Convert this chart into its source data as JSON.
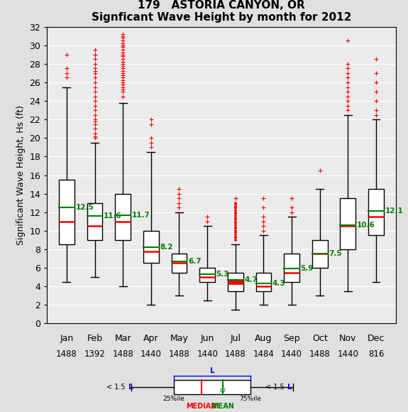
{
  "title_line1": "179   ASTORIA CANYON, OR",
  "title_line2": "Signficant Wave Height by month for 2012",
  "ylabel": "Significant Wave Height, Hs (ft)",
  "months": [
    "Jan",
    "Feb",
    "Mar",
    "Apr",
    "May",
    "Jun",
    "Jul",
    "Aug",
    "Sep",
    "Oct",
    "Nov",
    "Dec"
  ],
  "counts": [
    "1488",
    "1392",
    "1488",
    "1440",
    "1488",
    "1440",
    "1488",
    "1484",
    "1440",
    "1488",
    "1440",
    "816"
  ],
  "ylim": [
    0,
    32
  ],
  "yticks": [
    0,
    2,
    4,
    6,
    8,
    10,
    12,
    14,
    16,
    18,
    20,
    22,
    24,
    26,
    28,
    30,
    32
  ],
  "box_data": {
    "Jan": {
      "q1": 8.5,
      "median": 11.0,
      "q3": 15.5,
      "whislo": 4.5,
      "whishi": 25.5,
      "mean": 12.5,
      "fliers": [
        26.5,
        27.0,
        27.5,
        29.0
      ]
    },
    "Feb": {
      "q1": 9.0,
      "median": 10.5,
      "q3": 13.0,
      "whislo": 5.0,
      "whishi": 19.5,
      "mean": 11.6,
      "fliers": [
        20.0,
        20.2,
        20.5,
        21.0,
        21.5,
        21.8,
        22.0,
        22.5,
        23.0,
        23.5,
        24.0,
        24.5,
        25.0,
        25.5,
        26.0,
        26.5,
        27.0,
        27.2,
        27.5,
        28.0,
        28.5,
        29.0,
        29.0,
        29.5
      ]
    },
    "Mar": {
      "q1": 9.0,
      "median": 11.0,
      "q3": 14.0,
      "whislo": 4.0,
      "whishi": 23.8,
      "mean": 11.7,
      "fliers": [
        24.5,
        25.0,
        25.2,
        25.5,
        25.8,
        26.0,
        26.2,
        26.5,
        26.8,
        27.0,
        27.2,
        27.5,
        27.8,
        28.0,
        28.2,
        28.5,
        28.8,
        29.0,
        29.2,
        29.5,
        29.8,
        30.0,
        30.2,
        30.5,
        30.8,
        31.0,
        31.2
      ]
    },
    "Apr": {
      "q1": 6.5,
      "median": 7.8,
      "q3": 10.0,
      "whislo": 2.0,
      "whishi": 18.5,
      "mean": 8.2,
      "fliers": [
        19.0,
        19.5,
        20.0,
        21.5,
        22.0
      ]
    },
    "May": {
      "q1": 5.5,
      "median": 6.5,
      "q3": 7.5,
      "whislo": 3.0,
      "whishi": 12.0,
      "mean": 6.7,
      "fliers": [
        12.5,
        13.0,
        13.5,
        14.0,
        14.5
      ]
    },
    "Jun": {
      "q1": 4.5,
      "median": 5.0,
      "q3": 6.0,
      "whislo": 2.5,
      "whishi": 10.5,
      "mean": 5.3,
      "fliers": [
        11.0,
        11.5
      ]
    },
    "Jul": {
      "q1": 3.5,
      "median": 4.5,
      "q3": 5.5,
      "whislo": 1.5,
      "whishi": 8.5,
      "mean": 4.7,
      "fliers": [
        9.0,
        9.5,
        10.0,
        10.2,
        10.5,
        10.8,
        11.0,
        11.2,
        11.5,
        11.8,
        12.0,
        12.2,
        12.5,
        13.5
      ]
    },
    "Aug": {
      "q1": 3.5,
      "median": 4.0,
      "q3": 5.5,
      "whislo": 2.0,
      "whishi": 9.5,
      "mean": 4.3,
      "fliers": [
        10.0,
        10.5,
        11.0,
        11.5,
        12.5,
        13.5
      ]
    },
    "Sep": {
      "q1": 4.5,
      "median": 5.5,
      "q3": 7.5,
      "whislo": 2.0,
      "whishi": 11.5,
      "mean": 5.9,
      "fliers": [
        12.0,
        12.5,
        13.5
      ]
    },
    "Oct": {
      "q1": 6.0,
      "median": 7.5,
      "q3": 9.0,
      "whislo": 3.0,
      "whishi": 14.5,
      "mean": 7.5,
      "fliers": [
        16.5
      ]
    },
    "Nov": {
      "q1": 8.0,
      "median": 10.5,
      "q3": 13.5,
      "whislo": 3.5,
      "whishi": 22.5,
      "mean": 10.6,
      "fliers": [
        23.0,
        23.5,
        24.0,
        24.5,
        25.0,
        25.5,
        26.0,
        26.5,
        27.0,
        27.5,
        28.0,
        30.5
      ]
    },
    "Dec": {
      "q1": 9.5,
      "median": 11.5,
      "q3": 14.5,
      "whislo": 4.5,
      "whishi": 22.0,
      "mean": 12.1,
      "fliers": [
        22.5,
        23.0,
        24.0,
        25.0,
        26.0,
        27.0,
        28.5
      ]
    }
  },
  "jul_fliers_dense": [
    9.0,
    9.2,
    9.4,
    9.6,
    9.8,
    10.0,
    10.2,
    10.4,
    10.6,
    10.8,
    11.0,
    11.2,
    11.4,
    11.6,
    11.8,
    12.0,
    12.2,
    12.4,
    12.6,
    12.8,
    13.0
  ],
  "background_color": "#e0e0e0",
  "plot_bg_color": "#ebebeb",
  "grid_color": "white",
  "title_fontsize": 11,
  "label_fontsize": 9,
  "tick_fontsize": 9,
  "count_fontsize": 8.5
}
